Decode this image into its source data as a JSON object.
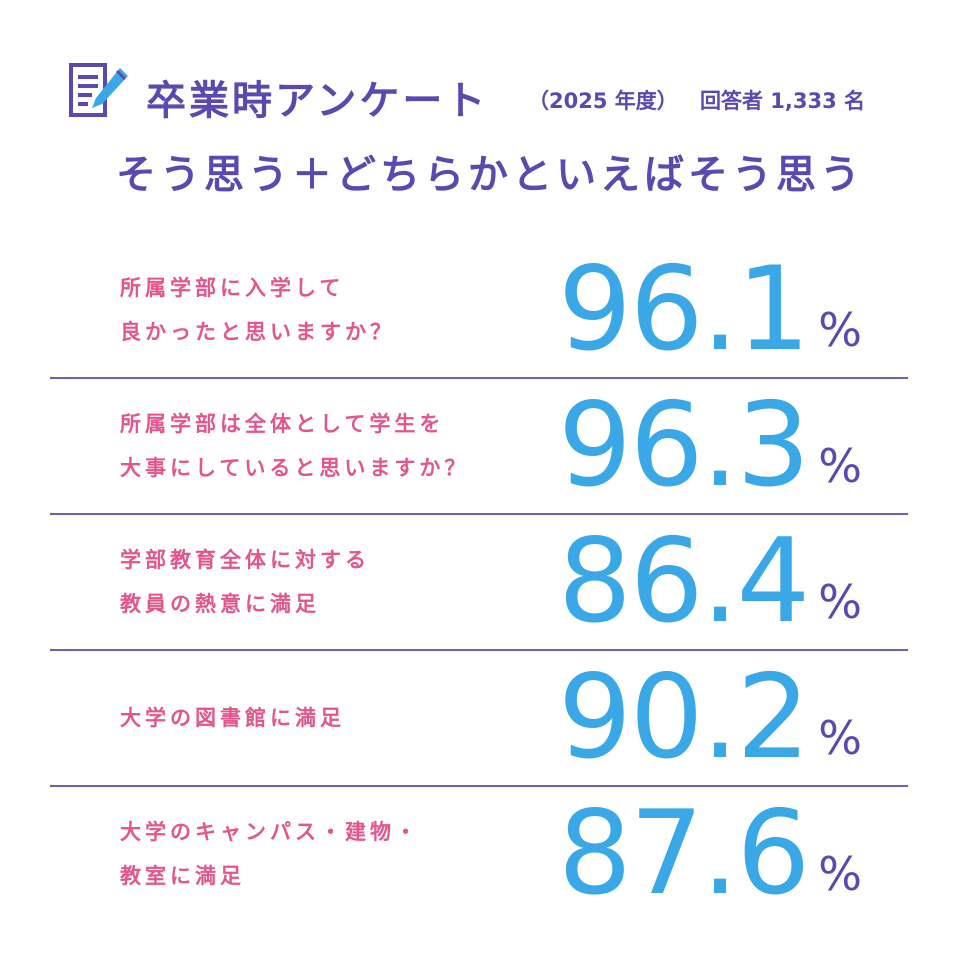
{
  "header": {
    "icon": "survey-form-icon",
    "title": "卒業時アンケート",
    "year": "（2025 年度）",
    "respondents": "回答者 1,333 名"
  },
  "subtitle": "そう思う＋どちらかといえばそう思う",
  "colors": {
    "purple": "#5b48b0",
    "pink": "#e3558c",
    "blue": "#3aa8e6",
    "divider": "#6e5fb8"
  },
  "rows": [
    {
      "lines": [
        "所属学部に入学して",
        "良かったと思いますか？"
      ],
      "value": "96.1",
      "unit": "%"
    },
    {
      "lines": [
        "所属学部は全体として学生を",
        "大事にしていると思いますか？"
      ],
      "value": "96.3",
      "unit": "%"
    },
    {
      "lines": [
        "学部教育全体に対する",
        "教員の熱意に満足"
      ],
      "value": "86.4",
      "unit": "%"
    },
    {
      "lines": [
        "大学の図書館に満足"
      ],
      "value": "90.2",
      "unit": "%"
    },
    {
      "lines": [
        "大学のキャンパス・建物・",
        "教室に満足"
      ],
      "value": "87.6",
      "unit": "%"
    }
  ]
}
